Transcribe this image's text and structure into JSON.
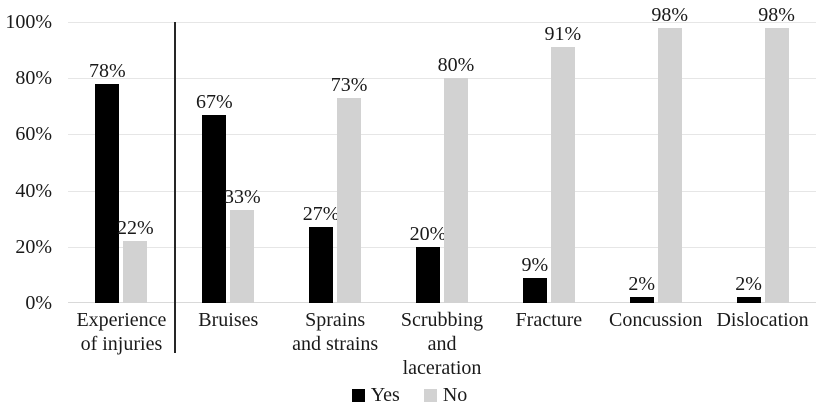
{
  "chart_data": {
    "type": "bar",
    "title": "",
    "categories": [
      "Experience\nof injuries",
      "Bruises",
      "Sprains\nand strains",
      "Scrubbing\nand\nlaceration",
      "Fracture",
      "Concussion",
      "Dislocation"
    ],
    "series": [
      {
        "name": "Yes",
        "color": "#000000",
        "values": [
          78,
          67,
          27,
          20,
          9,
          2,
          2
        ]
      },
      {
        "name": "No",
        "color": "#d2d2d2",
        "values": [
          22,
          33,
          73,
          80,
          91,
          98,
          98
        ]
      }
    ],
    "value_label_suffix": "%",
    "y_ticks": [
      "100%",
      "80%",
      "60%",
      "40%",
      "20%",
      "0%"
    ],
    "ylim": [
      0,
      100
    ],
    "grid": true,
    "legend_position": "bottom",
    "separator_after_category_index": 0
  },
  "colors": {
    "background": "#ffffff",
    "gridline": "#e6e6e6",
    "axis_line": "#d9d9d9",
    "separator_line": "#262626",
    "text": "#1a1a1a",
    "series_yes": "#000000",
    "series_no": "#d2d2d2"
  }
}
